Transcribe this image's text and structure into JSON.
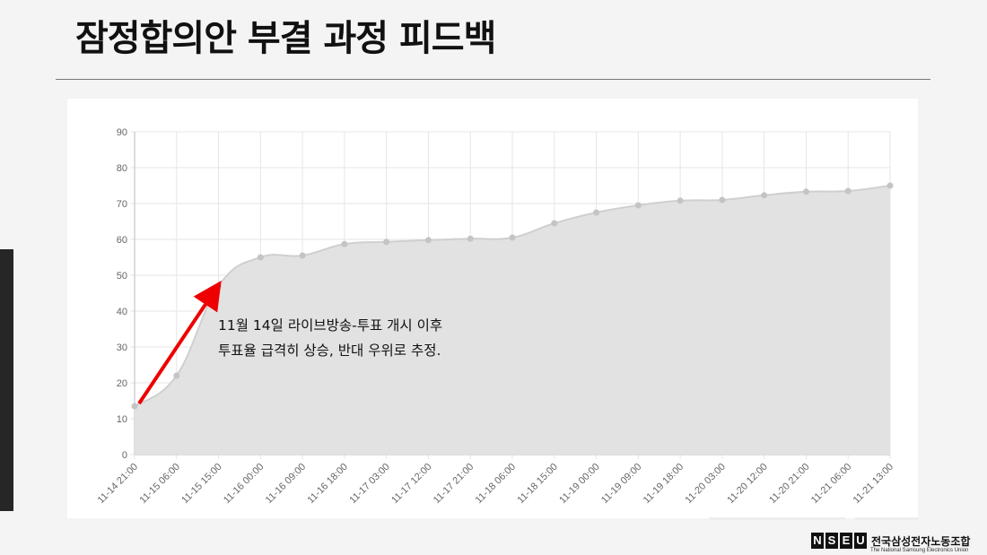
{
  "title": "잠정합의안 부결 과정 피드백",
  "chart_data": {
    "type": "area",
    "categories": [
      "11-14 21:00",
      "11-15 06:00",
      "11-15 15:00",
      "11-16 00:00",
      "11-16 09:00",
      "11-16 18:00",
      "11-17 03:00",
      "11-17 12:00",
      "11-17 21:00",
      "11-18 06:00",
      "11-18 15:00",
      "11-19 00:00",
      "11-19 09:00",
      "11-19 18:00",
      "11-20 03:00",
      "11-20 12:00",
      "11-20 21:00",
      "11-21 06:00",
      "11-21 13:00"
    ],
    "values": [
      13.5,
      22,
      47,
      55,
      55.5,
      58.7,
      59.3,
      59.8,
      60.2,
      60.5,
      64.5,
      67.5,
      69.5,
      70.8,
      71,
      72.3,
      73.3,
      73.5,
      75
    ],
    "color": "#cfcfcf",
    "fill": "#e2e2e2",
    "ylim": [
      0,
      90
    ],
    "yticks": [
      0,
      10,
      20,
      30,
      40,
      50,
      60,
      70,
      80,
      90
    ],
    "grid": true,
    "annotations": [
      "11월 14일 라이브방송-투표 개시 이후",
      "투표율 급격히 상승, 반대 우위로 추정."
    ]
  },
  "logo": {
    "letters": [
      "N",
      "S",
      "E",
      "U"
    ],
    "name": "전국삼성전자노동조합",
    "subtitle": "The National Samsung Electronics Union"
  }
}
